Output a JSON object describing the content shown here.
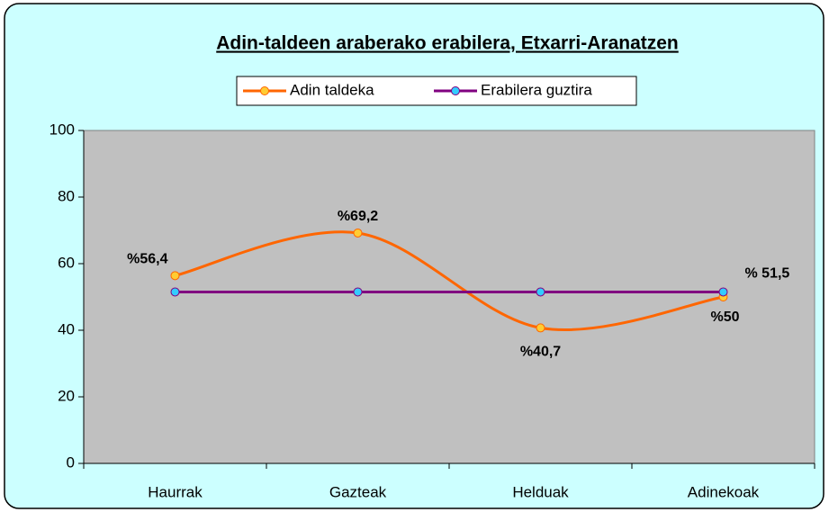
{
  "chart_data": {
    "type": "line",
    "title": "Adin-taldeen araberako erabilera, Etxarri-Aranatzen",
    "categories": [
      "Haurrak",
      "Gazteak",
      "Helduak",
      "Adinekoak"
    ],
    "series": [
      {
        "name": "Adin taldeka",
        "color": "#ff6600",
        "marker_fill": "#ffcc33",
        "smooth": true,
        "values": [
          56.4,
          69.2,
          40.7,
          50
        ],
        "value_labels": [
          "%56,4",
          "%69,2",
          "%40,7",
          "%50"
        ]
      },
      {
        "name": "Erabilera guztira",
        "color": "#800080",
        "marker_fill": "#33ccff",
        "smooth": false,
        "values": [
          51.5,
          51.5,
          51.5,
          51.5
        ],
        "value_labels": [
          null,
          null,
          null,
          "% 51,5"
        ]
      }
    ],
    "ylim": [
      0,
      100
    ],
    "yticks": [
      0,
      20,
      40,
      60,
      80,
      100
    ],
    "plot_background": "#c0c0c0"
  }
}
